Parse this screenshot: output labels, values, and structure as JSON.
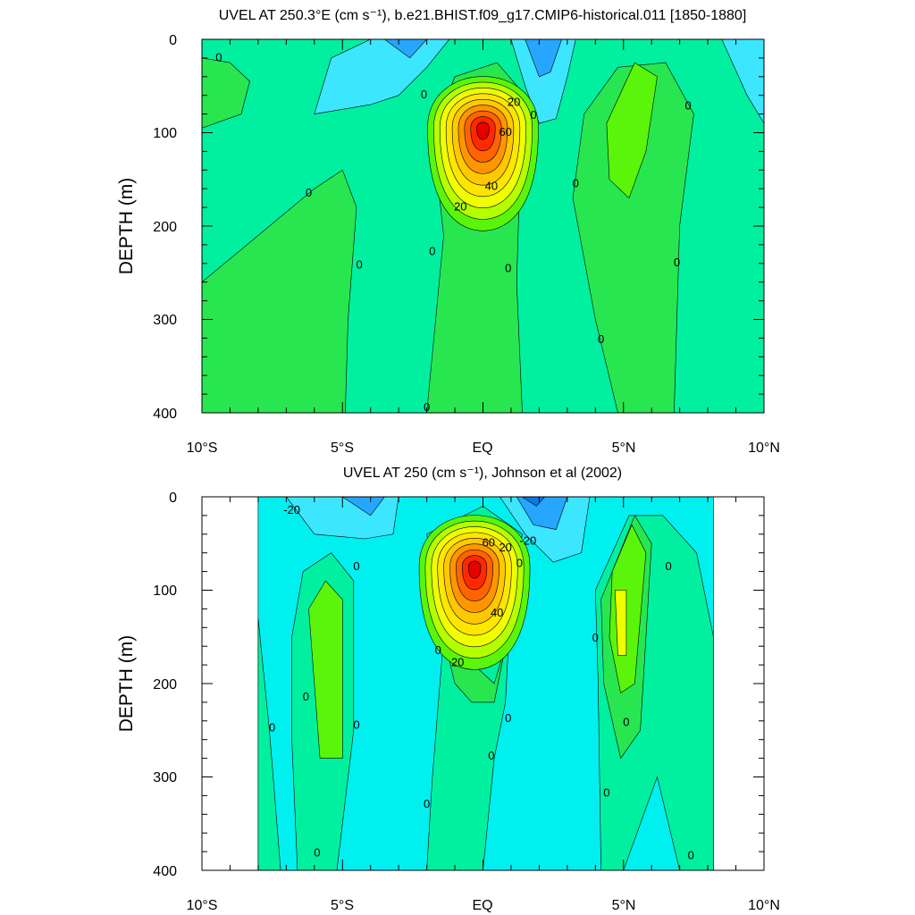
{
  "chart_data": [
    {
      "type": "contour",
      "title": "UVEL AT 250.3°E (cm s⁻¹), b.e21.BHIST.f09_g17.CMIP6-historical.011 [1850-1880]",
      "xlabel": "",
      "ylabel": "DEPTH (m)",
      "x_ticks": [
        "10°S",
        "5°S",
        "EQ",
        "5°N",
        "10°N"
      ],
      "y_ticks": [
        "0",
        "100",
        "200",
        "300",
        "400"
      ],
      "xlim": [
        -10,
        10
      ],
      "ylim": [
        0,
        400
      ],
      "data_extent_lat": [
        -10,
        10
      ],
      "contour_interval": 10,
      "core": {
        "lat": 0,
        "depth": 95,
        "max_value": 90
      },
      "contour_labels": [
        {
          "text": "0",
          "lat": -9.4,
          "depth": 20
        },
        {
          "text": "0",
          "lat": -2.1,
          "depth": 60
        },
        {
          "text": "20",
          "lat": 1.1,
          "depth": 68
        },
        {
          "text": "0",
          "lat": 1.8,
          "depth": 82
        },
        {
          "text": "60",
          "lat": 0.8,
          "depth": 100
        },
        {
          "text": "0",
          "lat": -6.2,
          "depth": 165
        },
        {
          "text": "40",
          "lat": 0.3,
          "depth": 158
        },
        {
          "text": "20",
          "lat": -0.8,
          "depth": 180
        },
        {
          "text": "0",
          "lat": 3.3,
          "depth": 155
        },
        {
          "text": "0",
          "lat": 7.3,
          "depth": 72
        },
        {
          "text": "0",
          "lat": -1.8,
          "depth": 228
        },
        {
          "text": "0",
          "lat": -4.4,
          "depth": 242
        },
        {
          "text": "0",
          "lat": 0.9,
          "depth": 246
        },
        {
          "text": "0",
          "lat": 6.9,
          "depth": 240
        },
        {
          "text": "0",
          "lat": 4.2,
          "depth": 322
        },
        {
          "text": "0",
          "lat": -2.0,
          "depth": 395
        }
      ]
    },
    {
      "type": "contour",
      "title": "UVEL AT 250 (cm s⁻¹), Johnson et al (2002)",
      "xlabel": "",
      "ylabel": "DEPTH (m)",
      "x_ticks": [
        "10°S",
        "5°S",
        "EQ",
        "5°N",
        "10°N"
      ],
      "y_ticks": [
        "0",
        "100",
        "200",
        "300",
        "400"
      ],
      "xlim": [
        -10,
        10
      ],
      "ylim": [
        0,
        400
      ],
      "data_extent_lat": [
        -8,
        8.2
      ],
      "contour_interval": 10,
      "core": {
        "lat": -0.3,
        "depth": 75,
        "max_value": 90
      },
      "contour_labels": [
        {
          "text": "-20",
          "lat": -6.8,
          "depth": 15
        },
        {
          "text": "60",
          "lat": 0.2,
          "depth": 50
        },
        {
          "text": "20",
          "lat": 0.8,
          "depth": 55
        },
        {
          "text": "-20",
          "lat": 1.6,
          "depth": 48
        },
        {
          "text": "0",
          "lat": 1.3,
          "depth": 72
        },
        {
          "text": "0",
          "lat": -4.5,
          "depth": 75
        },
        {
          "text": "0",
          "lat": 6.6,
          "depth": 75
        },
        {
          "text": "40",
          "lat": 0.5,
          "depth": 125
        },
        {
          "text": "0",
          "lat": 4.0,
          "depth": 152
        },
        {
          "text": "0",
          "lat": -1.6,
          "depth": 165
        },
        {
          "text": "20",
          "lat": -0.9,
          "depth": 178
        },
        {
          "text": "0",
          "lat": -6.3,
          "depth": 215
        },
        {
          "text": "0",
          "lat": 0.9,
          "depth": 238
        },
        {
          "text": "0",
          "lat": 5.1,
          "depth": 242
        },
        {
          "text": "0",
          "lat": -7.5,
          "depth": 248
        },
        {
          "text": "0",
          "lat": -4.5,
          "depth": 245
        },
        {
          "text": "0",
          "lat": 0.3,
          "depth": 278
        },
        {
          "text": "0",
          "lat": 4.4,
          "depth": 318
        },
        {
          "text": "0",
          "lat": -2.0,
          "depth": 330
        },
        {
          "text": "0",
          "lat": -5.9,
          "depth": 382
        },
        {
          "text": "0",
          "lat": 7.4,
          "depth": 385
        }
      ]
    }
  ],
  "colors": {
    "neg30": "#0a78e6",
    "neg20": "#26a6ff",
    "neg10": "#3ce6ff",
    "zero_below": "#00f0f0",
    "pos0": "#00f0a0",
    "pos10": "#28e650",
    "pos20": "#5af50a",
    "pos30": "#b4ff00",
    "pos40": "#f0ff00",
    "pos50": "#ffe600",
    "pos60": "#ffc800",
    "pos70": "#ff9600",
    "pos80": "#ff6400",
    "pos90": "#ff2800",
    "pos100": "#e60000"
  }
}
